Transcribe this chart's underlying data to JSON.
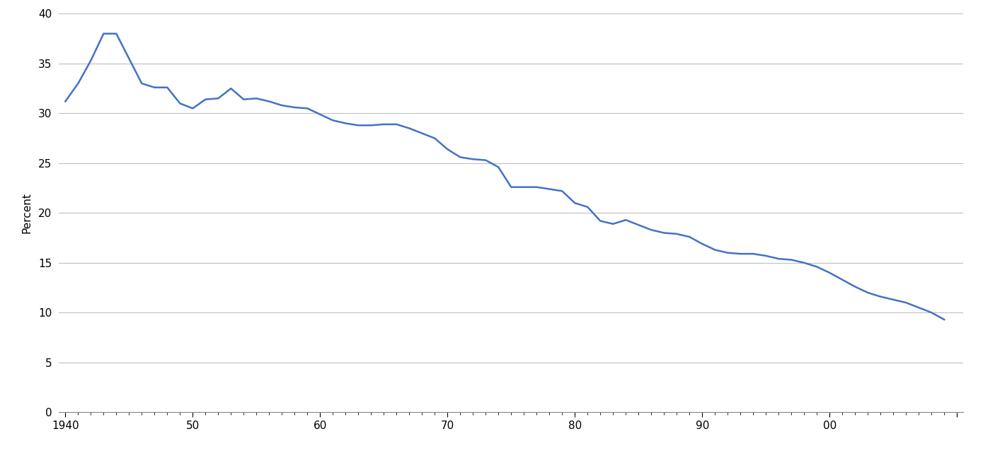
{
  "ylabel": "Percent",
  "line_color": "#4472C4",
  "line_width": 1.8,
  "background_color": "#ffffff",
  "ylim": [
    0,
    40
  ],
  "yticks": [
    0,
    5,
    10,
    15,
    20,
    25,
    30,
    35,
    40
  ],
  "xlim": [
    1939.5,
    2010.5
  ],
  "xtick_labels": [
    "1940",
    "50",
    "60",
    "70",
    "80",
    "90",
    "00",
    ""
  ],
  "xtick_positions": [
    1940,
    1950,
    1960,
    1970,
    1980,
    1990,
    2000,
    2010
  ],
  "grid_color": "#c0c0c0",
  "grid_linewidth": 0.8,
  "data": [
    [
      1940,
      31.2
    ],
    [
      1941,
      33.0
    ],
    [
      1942,
      35.3
    ],
    [
      1943,
      38.0
    ],
    [
      1944,
      38.0
    ],
    [
      1945,
      35.5
    ],
    [
      1946,
      33.0
    ],
    [
      1947,
      32.6
    ],
    [
      1948,
      32.6
    ],
    [
      1949,
      31.0
    ],
    [
      1950,
      30.5
    ],
    [
      1951,
      31.4
    ],
    [
      1952,
      31.5
    ],
    [
      1953,
      32.5
    ],
    [
      1954,
      31.4
    ],
    [
      1955,
      31.5
    ],
    [
      1956,
      31.2
    ],
    [
      1957,
      30.8
    ],
    [
      1958,
      30.6
    ],
    [
      1959,
      30.5
    ],
    [
      1960,
      29.9
    ],
    [
      1961,
      29.3
    ],
    [
      1962,
      29.0
    ],
    [
      1963,
      28.8
    ],
    [
      1964,
      28.8
    ],
    [
      1965,
      28.9
    ],
    [
      1966,
      28.9
    ],
    [
      1967,
      28.5
    ],
    [
      1968,
      28.0
    ],
    [
      1969,
      27.5
    ],
    [
      1970,
      26.4
    ],
    [
      1971,
      25.6
    ],
    [
      1972,
      25.4
    ],
    [
      1973,
      25.3
    ],
    [
      1974,
      24.6
    ],
    [
      1975,
      22.6
    ],
    [
      1976,
      22.6
    ],
    [
      1977,
      22.6
    ],
    [
      1978,
      22.4
    ],
    [
      1979,
      22.2
    ],
    [
      1980,
      21.0
    ],
    [
      1981,
      20.6
    ],
    [
      1982,
      19.2
    ],
    [
      1983,
      18.9
    ],
    [
      1984,
      19.3
    ],
    [
      1985,
      18.8
    ],
    [
      1986,
      18.3
    ],
    [
      1987,
      18.0
    ],
    [
      1988,
      17.9
    ],
    [
      1989,
      17.6
    ],
    [
      1990,
      16.9
    ],
    [
      1991,
      16.3
    ],
    [
      1992,
      16.0
    ],
    [
      1993,
      15.9
    ],
    [
      1994,
      15.9
    ],
    [
      1995,
      15.7
    ],
    [
      1996,
      15.4
    ],
    [
      1997,
      15.3
    ],
    [
      1998,
      15.0
    ],
    [
      1999,
      14.6
    ],
    [
      2000,
      14.0
    ],
    [
      2001,
      13.3
    ],
    [
      2002,
      12.6
    ],
    [
      2003,
      12.0
    ],
    [
      2004,
      11.6
    ],
    [
      2005,
      11.3
    ],
    [
      2006,
      11.0
    ],
    [
      2007,
      10.5
    ],
    [
      2008,
      10.0
    ],
    [
      2009,
      9.3
    ]
  ]
}
